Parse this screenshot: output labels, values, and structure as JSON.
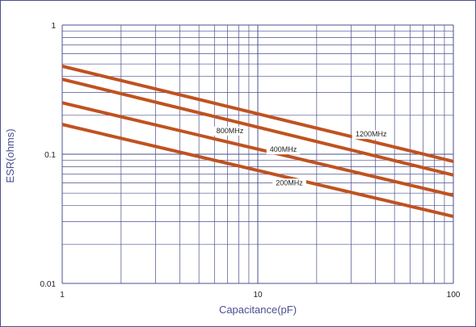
{
  "chart_data": {
    "type": "line",
    "title": "",
    "xlabel": "Capacitance(pF)",
    "ylabel": "ESR(ohms)",
    "x_scale": "log",
    "y_scale": "log",
    "xlim": [
      1,
      100
    ],
    "ylim": [
      0.01,
      1
    ],
    "x_ticks": [
      {
        "value": 1,
        "label": "1"
      },
      {
        "value": 10,
        "label": "10"
      },
      {
        "value": 100,
        "label": "100"
      }
    ],
    "y_ticks": [
      {
        "value": 1,
        "label": "1"
      },
      {
        "value": 0.1,
        "label": "0.1"
      },
      {
        "value": 0.01,
        "label": "0.01"
      }
    ],
    "grid": true,
    "series": [
      {
        "name": "1200MHz",
        "x": [
          1,
          100
        ],
        "y": [
          0.48,
          0.088
        ]
      },
      {
        "name": "800MHz",
        "x": [
          1,
          100
        ],
        "y": [
          0.38,
          0.069
        ]
      },
      {
        "name": "400MHz",
        "x": [
          1,
          100
        ],
        "y": [
          0.25,
          0.048
        ]
      },
      {
        "name": "200MHz",
        "x": [
          1,
          100
        ],
        "y": [
          0.17,
          0.033
        ]
      }
    ]
  },
  "colors": {
    "grid": "#4a4f8f",
    "axis_text": "#4a4f8f",
    "tick_text": "#222222",
    "series_line": "#c0521f",
    "frame": "#4a4f8f"
  }
}
